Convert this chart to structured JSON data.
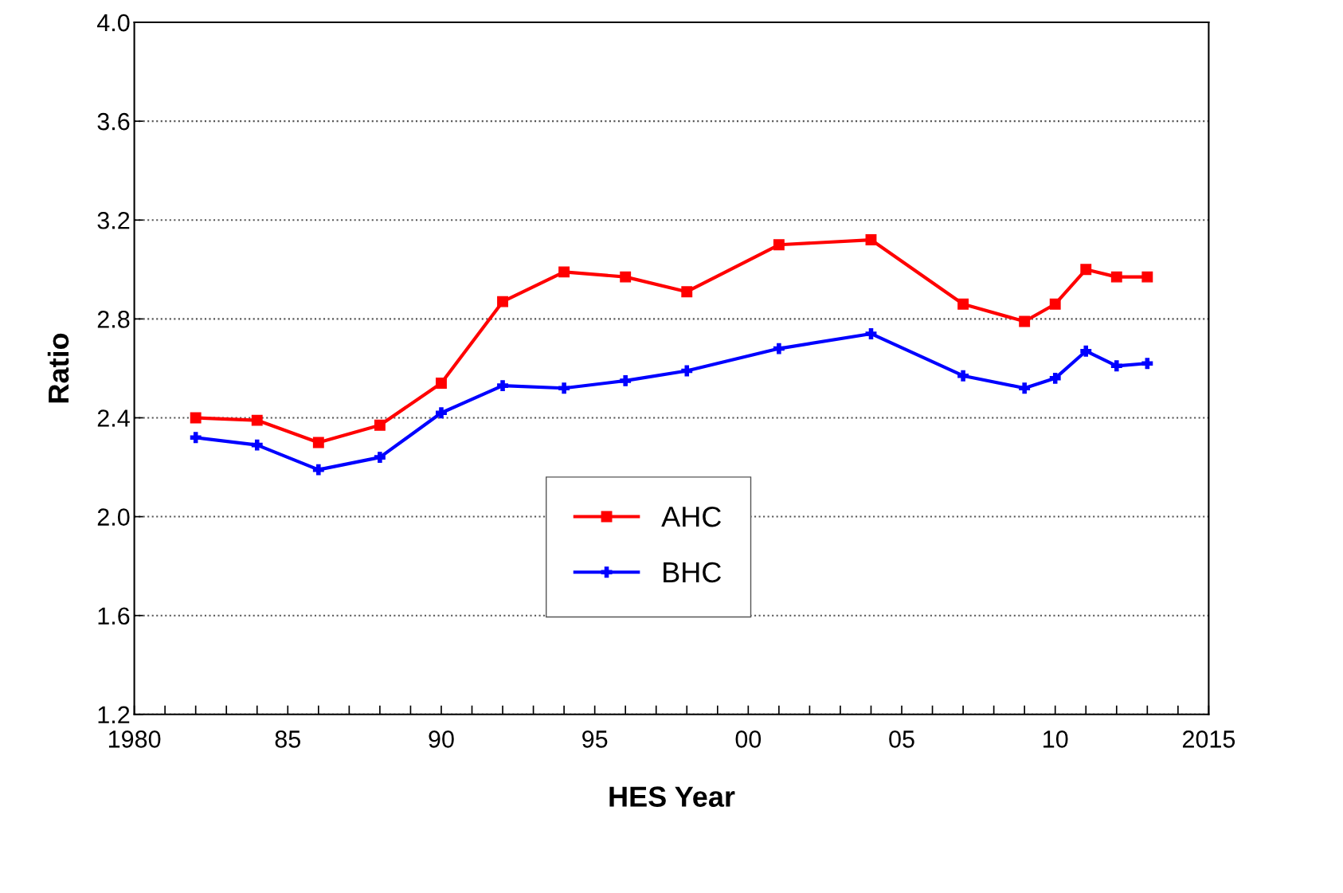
{
  "chart_data": {
    "type": "line",
    "xlabel": "HES Year",
    "ylabel": "Ratio",
    "x": [
      1982,
      1984,
      1986,
      1988,
      1990,
      1992,
      1994,
      1996,
      1998,
      2001,
      2004,
      2007,
      2009,
      2010,
      2011,
      2012,
      2013
    ],
    "series": [
      {
        "name": "AHC",
        "color": "#ff0000",
        "marker": "square",
        "values": [
          2.4,
          2.39,
          2.3,
          2.37,
          2.54,
          2.87,
          2.99,
          2.97,
          2.91,
          3.1,
          3.12,
          2.86,
          2.79,
          2.86,
          3.0,
          2.97,
          2.97
        ]
      },
      {
        "name": "BHC",
        "color": "#0000ff",
        "marker": "cross",
        "values": [
          2.32,
          2.29,
          2.19,
          2.24,
          2.42,
          2.53,
          2.52,
          2.55,
          2.59,
          2.68,
          2.74,
          2.57,
          2.52,
          2.56,
          2.67,
          2.61,
          2.62
        ]
      }
    ],
    "xlim": [
      1980,
      2015
    ],
    "xticks": [
      {
        "value": 1980,
        "label": "1980"
      },
      {
        "value": 1981,
        "label": null
      },
      {
        "value": 1982,
        "label": null
      },
      {
        "value": 1983,
        "label": null
      },
      {
        "value": 1984,
        "label": null
      },
      {
        "value": 1985,
        "label": "85"
      },
      {
        "value": 1986,
        "label": null
      },
      {
        "value": 1987,
        "label": null
      },
      {
        "value": 1988,
        "label": null
      },
      {
        "value": 1989,
        "label": null
      },
      {
        "value": 1990,
        "label": "90"
      },
      {
        "value": 1991,
        "label": null
      },
      {
        "value": 1992,
        "label": null
      },
      {
        "value": 1993,
        "label": null
      },
      {
        "value": 1994,
        "label": null
      },
      {
        "value": 1995,
        "label": "95"
      },
      {
        "value": 1996,
        "label": null
      },
      {
        "value": 1997,
        "label": null
      },
      {
        "value": 1998,
        "label": null
      },
      {
        "value": 1999,
        "label": null
      },
      {
        "value": 2000,
        "label": "00"
      },
      {
        "value": 2001,
        "label": null
      },
      {
        "value": 2002,
        "label": null
      },
      {
        "value": 2003,
        "label": null
      },
      {
        "value": 2004,
        "label": null
      },
      {
        "value": 2005,
        "label": "05"
      },
      {
        "value": 2006,
        "label": null
      },
      {
        "value": 2007,
        "label": null
      },
      {
        "value": 2008,
        "label": null
      },
      {
        "value": 2009,
        "label": null
      },
      {
        "value": 2010,
        "label": "10"
      },
      {
        "value": 2011,
        "label": null
      },
      {
        "value": 2012,
        "label": null
      },
      {
        "value": 2013,
        "label": null
      },
      {
        "value": 2014,
        "label": null
      },
      {
        "value": 2015,
        "label": "2015"
      }
    ],
    "ylim": [
      1.2,
      4.0
    ],
    "yticks": [
      {
        "value": 1.2,
        "label": "1.2"
      },
      {
        "value": 1.6,
        "label": "1.6"
      },
      {
        "value": 2.0,
        "label": "2.0"
      },
      {
        "value": 2.4,
        "label": "2.4"
      },
      {
        "value": 2.8,
        "label": "2.8"
      },
      {
        "value": 3.2,
        "label": "3.2"
      },
      {
        "value": 3.6,
        "label": "3.6"
      },
      {
        "value": 4.0,
        "label": "4.0"
      }
    ],
    "grid": "y",
    "legend": "bottom",
    "line_style": "solid"
  }
}
